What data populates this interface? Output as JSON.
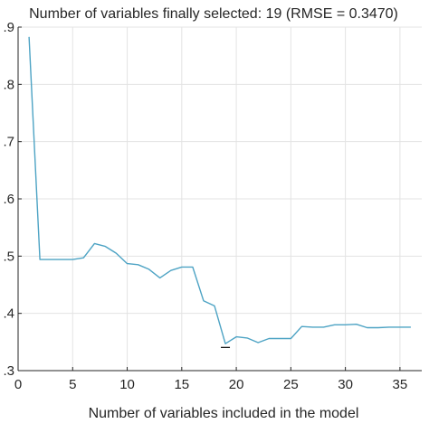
{
  "chart_data": {
    "type": "line",
    "title": "Number of variables finally selected: 19 (RMSE = 0.3470)",
    "xlabel": "Number of variables included in the model",
    "ylabel": "",
    "xlim": [
      0,
      37
    ],
    "ylim": [
      0.3,
      0.9
    ],
    "x_ticks": [
      0,
      5,
      10,
      15,
      20,
      25,
      30,
      35
    ],
    "y_ticks": [
      0.3,
      0.4,
      0.5,
      0.6,
      0.7,
      0.8,
      0.9
    ],
    "y_tick_labels": [
      ".3",
      ".4",
      ".5",
      ".6",
      ".7",
      ".8",
      ".9"
    ],
    "grid": true,
    "series": [
      {
        "color": "#4da3c4",
        "x": [
          1,
          2,
          3,
          4,
          5,
          6,
          7,
          8,
          9,
          10,
          11,
          12,
          13,
          14,
          15,
          16,
          17,
          18,
          19,
          20,
          21,
          22,
          23,
          24,
          25,
          26,
          27,
          28,
          29,
          30,
          31,
          32,
          33,
          34,
          35,
          36
        ],
        "y": [
          0.883,
          0.494,
          0.494,
          0.494,
          0.494,
          0.497,
          0.522,
          0.517,
          0.505,
          0.487,
          0.485,
          0.477,
          0.462,
          0.475,
          0.481,
          0.481,
          0.422,
          0.413,
          0.347,
          0.359,
          0.357,
          0.349,
          0.356,
          0.356,
          0.356,
          0.377,
          0.376,
          0.376,
          0.38,
          0.38,
          0.381,
          0.375,
          0.375,
          0.376,
          0.376,
          0.376
        ]
      }
    ],
    "selected_marker": {
      "x": 19,
      "y": 0.3405,
      "color": "#1a1a1a"
    }
  }
}
